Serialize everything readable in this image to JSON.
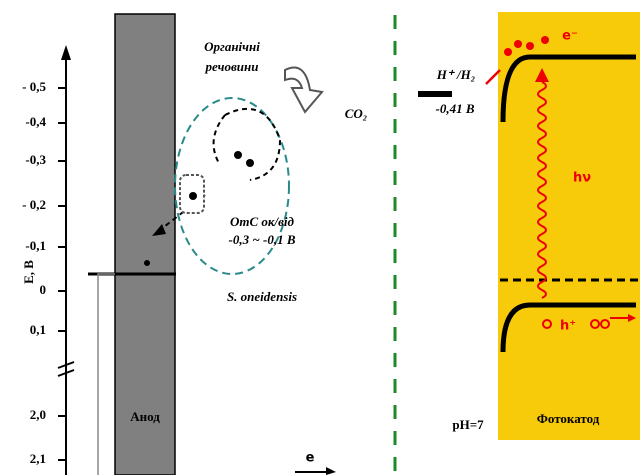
{
  "axis": {
    "label": "E, B",
    "ticks": [
      "- 0,5",
      "-0,4",
      "-0,3",
      "- 0,2",
      "-0,1",
      "0",
      "0,1",
      "2,0",
      "2,1"
    ]
  },
  "anode": {
    "label": "Анод"
  },
  "bacteria": {
    "organics": [
      "Органічні",
      "речовини"
    ],
    "co2": "CO₂",
    "omc": [
      "OmC ок/від",
      "-0,3 ~ -0,1 B"
    ],
    "species": "S. oneidensis"
  },
  "cathode": {
    "couple": "H⁺ /H₂",
    "potential": "-0,41 B",
    "ph": "pH=7",
    "label": "Фотокатод",
    "electron": "e⁻",
    "photon": "hν",
    "hole": "h⁺"
  },
  "current": {
    "electron": "e"
  }
}
